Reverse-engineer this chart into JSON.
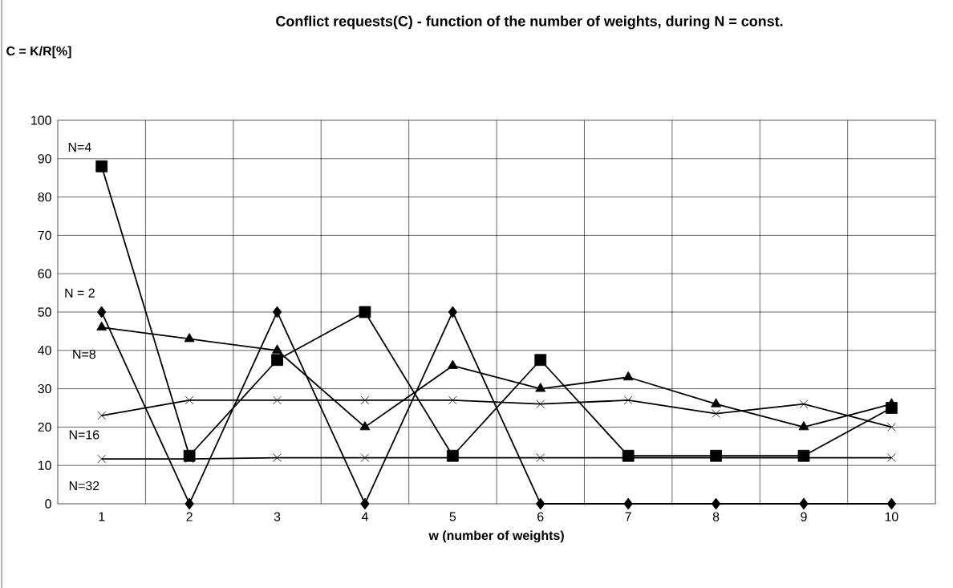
{
  "chart_data": {
    "type": "line",
    "title": "Conflict requests(C) - function of the number of weights, during N = const.",
    "xlabel": "w (number of weights)",
    "annotations": [
      "C = K/R[%]"
    ],
    "categories": [
      "1",
      "2",
      "3",
      "4",
      "5",
      "6",
      "7",
      "8",
      "9",
      "10"
    ],
    "ylim": [
      0,
      100
    ],
    "yticks": [
      0,
      10,
      20,
      30,
      40,
      50,
      60,
      70,
      80,
      90,
      100
    ],
    "grid": true,
    "legend": false,
    "line_style": "solid",
    "series": [
      {
        "name": "N = 2",
        "color": "#000000",
        "marker": "diamond",
        "values": [
          50,
          0,
          50,
          0,
          50,
          0,
          0,
          0,
          0,
          0
        ]
      },
      {
        "name": "N=4",
        "color": "#000000",
        "marker": "square",
        "values": [
          88,
          12.5,
          37.5,
          50,
          12.5,
          37.5,
          12.5,
          12.5,
          12.5,
          25
        ]
      },
      {
        "name": "N=8",
        "color": "#000000",
        "marker": "triangle",
        "values": [
          46,
          43,
          40,
          20,
          36,
          30,
          33,
          26,
          20,
          26
        ]
      },
      {
        "name": "N=16",
        "color": "#000000",
        "marker": "cross",
        "values": [
          23,
          27,
          27,
          27,
          27,
          26,
          27,
          23.5,
          26,
          20
        ]
      },
      {
        "name": "N=32",
        "color": "#000000",
        "marker": "cross",
        "values": [
          11.7,
          11.7,
          12,
          12,
          12,
          12,
          12,
          12,
          12,
          12
        ]
      }
    ]
  }
}
